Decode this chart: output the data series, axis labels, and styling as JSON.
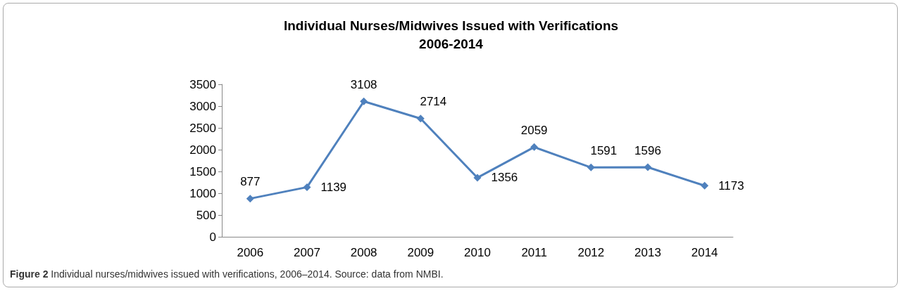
{
  "chart_data": {
    "type": "line",
    "title": "Individual Nurses/Midwives Issued with Verifications\n2006-2014",
    "categories": [
      "2006",
      "2007",
      "2008",
      "2009",
      "2010",
      "2011",
      "2012",
      "2013",
      "2014"
    ],
    "series": [
      {
        "color": "#4f81bd",
        "values": [
          877,
          1139,
          3108,
          2714,
          1356,
          2059,
          1591,
          1596,
          1173
        ]
      }
    ],
    "ylim": [
      0,
      3500
    ],
    "yticks": [
      0,
      500,
      1000,
      1500,
      2000,
      2500,
      3000,
      3500
    ],
    "grid": false,
    "marker": "diamond",
    "line_style": "solid",
    "data_labels": true,
    "annotations": [
      "Figure 2 Individual nurses/midwives issued with verifications, 2006–2014. Source: data from NMBI."
    ]
  }
}
